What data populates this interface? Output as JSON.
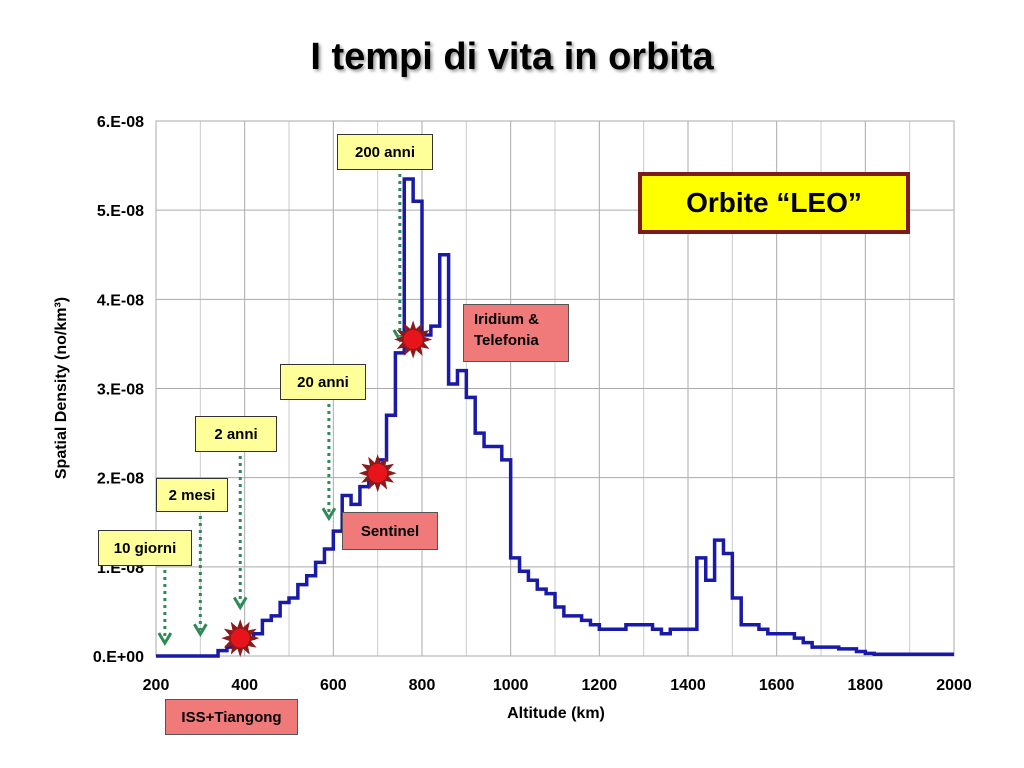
{
  "title": "I tempi di vita in orbita",
  "chart_data": {
    "type": "line",
    "xlabel": "Altitude (km)",
    "ylabel": "Spatial Density (no/km³)",
    "xlim": [
      200,
      2000
    ],
    "ylim": [
      0,
      6e-08
    ],
    "x_ticks": [
      "200",
      "400",
      "600",
      "800",
      "1000",
      "1200",
      "1400",
      "1600",
      "1800",
      "2000"
    ],
    "y_ticks": [
      "0.E+00",
      "1.E-08",
      "2.E-08",
      "3.E-08",
      "4.E-08",
      "5.E-08",
      "6.E-08"
    ],
    "grid": true,
    "series_color": "#1a1aa8",
    "steps": [
      [
        200,
        0.0
      ],
      [
        240,
        0.0
      ],
      [
        260,
        0.0
      ],
      [
        280,
        0.0
      ],
      [
        300,
        0.0
      ],
      [
        320,
        0.0
      ],
      [
        340,
        6e-10
      ],
      [
        360,
        1e-09
      ],
      [
        380,
        1.5e-09
      ],
      [
        400,
        2e-09
      ],
      [
        420,
        2.5e-09
      ],
      [
        440,
        4e-09
      ],
      [
        460,
        4.5e-09
      ],
      [
        480,
        6e-09
      ],
      [
        500,
        6.5e-09
      ],
      [
        520,
        8e-09
      ],
      [
        540,
        9e-09
      ],
      [
        560,
        1.05e-08
      ],
      [
        580,
        1.2e-08
      ],
      [
        600,
        1.4e-08
      ],
      [
        620,
        1.8e-08
      ],
      [
        640,
        1.7e-08
      ],
      [
        660,
        1.9e-08
      ],
      [
        680,
        2e-08
      ],
      [
        700,
        2.2e-08
      ],
      [
        720,
        2.7e-08
      ],
      [
        740,
        3.4e-08
      ],
      [
        760,
        5.35e-08
      ],
      [
        780,
        5.1e-08
      ],
      [
        800,
        3.6e-08
      ],
      [
        820,
        3.7e-08
      ],
      [
        840,
        4.5e-08
      ],
      [
        860,
        3.05e-08
      ],
      [
        880,
        3.2e-08
      ],
      [
        900,
        2.9e-08
      ],
      [
        920,
        2.5e-08
      ],
      [
        940,
        2.35e-08
      ],
      [
        960,
        2.35e-08
      ],
      [
        980,
        2.2e-08
      ],
      [
        1000,
        1.1e-08
      ],
      [
        1020,
        9.5e-09
      ],
      [
        1040,
        8.5e-09
      ],
      [
        1060,
        7.5e-09
      ],
      [
        1080,
        7e-09
      ],
      [
        1100,
        5.5e-09
      ],
      [
        1120,
        4.5e-09
      ],
      [
        1140,
        4.5e-09
      ],
      [
        1160,
        4e-09
      ],
      [
        1180,
        3.5e-09
      ],
      [
        1200,
        3e-09
      ],
      [
        1240,
        3e-09
      ],
      [
        1260,
        3.5e-09
      ],
      [
        1300,
        3.5e-09
      ],
      [
        1320,
        3e-09
      ],
      [
        1340,
        2.5e-09
      ],
      [
        1360,
        3e-09
      ],
      [
        1400,
        3e-09
      ],
      [
        1420,
        1.1e-08
      ],
      [
        1440,
        8.5e-09
      ],
      [
        1460,
        1.3e-08
      ],
      [
        1480,
        1.15e-08
      ],
      [
        1500,
        6.5e-09
      ],
      [
        1520,
        3.5e-09
      ],
      [
        1560,
        3e-09
      ],
      [
        1580,
        2.5e-09
      ],
      [
        1620,
        2.5e-09
      ],
      [
        1640,
        2e-09
      ],
      [
        1660,
        1.5e-09
      ],
      [
        1680,
        1e-09
      ],
      [
        1720,
        1e-09
      ],
      [
        1740,
        8e-10
      ],
      [
        1780,
        5e-10
      ],
      [
        1800,
        3e-10
      ],
      [
        1820,
        2e-10
      ],
      [
        2000,
        2e-10
      ]
    ]
  },
  "annotations": {
    "lifetimes": [
      {
        "label": "10 giorni",
        "x": 220,
        "arrow_from_y": 1e-08,
        "arrow_to_y": 1e-09
      },
      {
        "label": "2 mesi",
        "x": 300,
        "arrow_from_y": 1.6e-08,
        "arrow_to_y": 2e-09
      },
      {
        "label": "2 anni",
        "x": 390,
        "arrow_from_y": 2.2e-08,
        "arrow_to_y": 5e-09
      },
      {
        "label": "20 anni",
        "x": 590,
        "arrow_from_y": 2.8e-08,
        "arrow_to_y": 1.5e-08
      },
      {
        "label": "200 anni",
        "x": 750,
        "arrow_from_y": 5.4e-08,
        "arrow_to_y": 3.5e-08
      }
    ],
    "satellites": [
      {
        "label": "ISS+Tiangong",
        "x": 390,
        "y": 2e-09
      },
      {
        "label": "Sentinel",
        "x": 700,
        "y": 2.05e-08
      },
      {
        "label": "Iridium & Telefonia",
        "x": 780,
        "y": 3.55e-08
      }
    ],
    "leo_label": "Orbite “LEO”",
    "marker_color": "#e8141c"
  }
}
